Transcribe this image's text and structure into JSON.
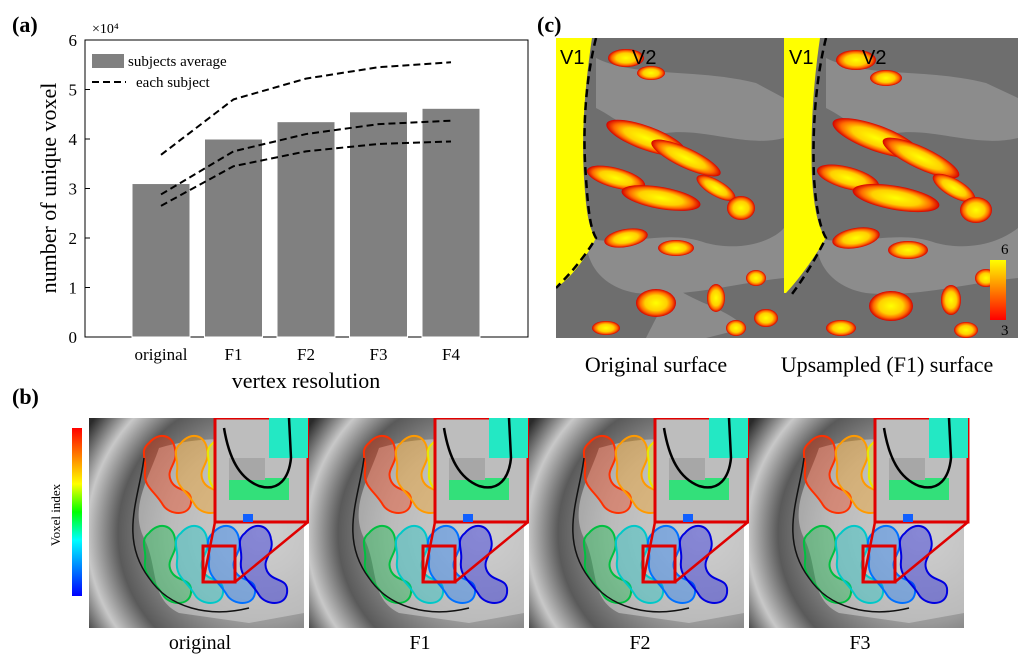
{
  "panels": {
    "a_label": "(a)",
    "b_label": "(b)",
    "c_label": "(c)"
  },
  "chart_data": {
    "type": "bar",
    "title": "",
    "xlabel": "vertex resolution",
    "ylabel": "number of unique voxel",
    "exponent_label": "×10⁴",
    "categories": [
      "original",
      "F1",
      "F2",
      "F3",
      "F4"
    ],
    "ylim": [
      0,
      6
    ],
    "yticks": [
      "0",
      "1",
      "2",
      "3",
      "4",
      "5",
      "6"
    ],
    "bar_color": "#808080",
    "series": [
      {
        "name": "subjects average",
        "kind": "bar",
        "values": [
          3.1,
          4.0,
          4.35,
          4.55,
          4.62
        ]
      },
      {
        "name": "each subject",
        "kind": "dashed-line",
        "values": [
          3.68,
          4.8,
          5.22,
          5.45,
          5.55
        ]
      },
      {
        "kind": "dashed-line",
        "values": [
          2.88,
          3.75,
          4.1,
          4.3,
          4.37
        ]
      },
      {
        "kind": "dashed-line",
        "values": [
          2.65,
          3.45,
          3.75,
          3.9,
          3.95
        ]
      }
    ],
    "legend": {
      "position": "top-left",
      "items": [
        "subjects average",
        "each subject"
      ]
    }
  },
  "panel_b": {
    "colorbar_label": "Voxel index",
    "images": [
      "original",
      "F1",
      "F2",
      "F3"
    ]
  },
  "panel_c": {
    "v1": "V1",
    "v2": "V2",
    "captions": [
      "Original surface",
      "Upsampled (F1) surface"
    ],
    "colorbar_max": "6",
    "colorbar_min": "3"
  }
}
